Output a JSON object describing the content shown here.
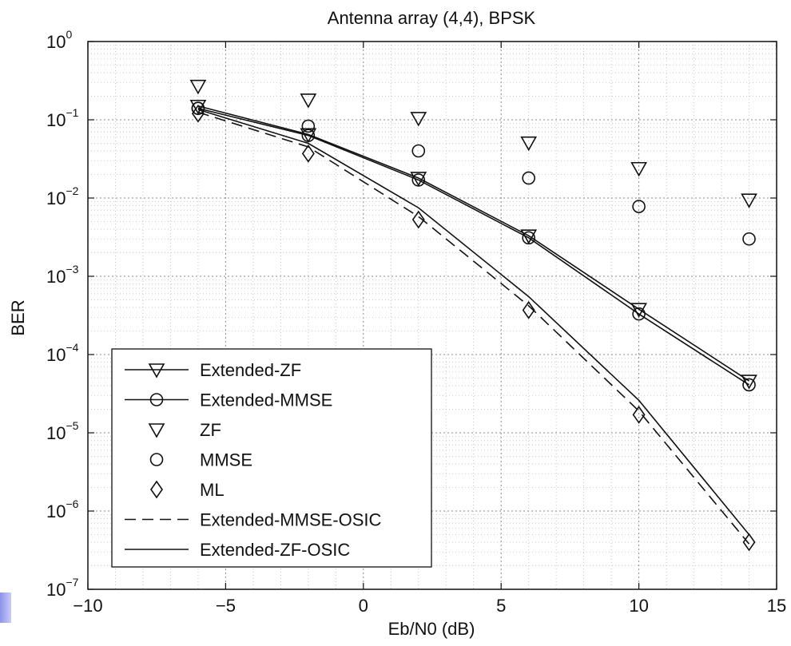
{
  "chart_data": {
    "type": "line",
    "title": "Antenna array (4,4), BPSK",
    "xlabel": "Eb/N0 (dB)",
    "ylabel": "BER",
    "xlim": [
      -10,
      15
    ],
    "ylim_log10": [
      -7,
      0
    ],
    "yscale": "log",
    "grid": true,
    "legend_position": "bottom-left",
    "x_ticks": [
      {
        "value": -10,
        "label": "−10"
      },
      {
        "value": -5,
        "label": "−5"
      },
      {
        "value": 0,
        "label": "0"
      },
      {
        "value": 5,
        "label": "5"
      },
      {
        "value": 10,
        "label": "10"
      },
      {
        "value": 15,
        "label": "15"
      }
    ],
    "y_ticks": [
      {
        "exp": 0,
        "base": "10",
        "sup": "0"
      },
      {
        "exp": -1,
        "base": "10",
        "sup": "−1"
      },
      {
        "exp": -2,
        "base": "10",
        "sup": "−2"
      },
      {
        "exp": -3,
        "base": "10",
        "sup": "−3"
      },
      {
        "exp": -4,
        "base": "10",
        "sup": "−4"
      },
      {
        "exp": -5,
        "base": "10",
        "sup": "−5"
      },
      {
        "exp": -6,
        "base": "10",
        "sup": "−6"
      },
      {
        "exp": -7,
        "base": "10",
        "sup": "−7"
      }
    ],
    "series": [
      {
        "name": "Extended-ZF",
        "line": "solid",
        "marker": "triangle-down",
        "x": [
          -6,
          -2,
          2,
          6,
          10,
          14
        ],
        "y": [
          0.15,
          0.065,
          0.018,
          0.0033,
          0.00038,
          4.6e-05
        ]
      },
      {
        "name": "Extended-MMSE",
        "line": "solid",
        "marker": "circle",
        "x": [
          -6,
          -2,
          2,
          6,
          10,
          14
        ],
        "y": [
          0.14,
          0.063,
          0.017,
          0.0031,
          0.00033,
          4.1e-05
        ]
      },
      {
        "name": "ZF",
        "line": "none",
        "marker": "triangle-down",
        "x": [
          -6,
          -2,
          2,
          6,
          10,
          14
        ],
        "y": [
          0.27,
          0.18,
          0.105,
          0.051,
          0.024,
          0.0095
        ]
      },
      {
        "name": "MMSE",
        "line": "none",
        "marker": "circle",
        "x": [
          -6,
          -2,
          2,
          6,
          10,
          14
        ],
        "y": [
          0.14,
          0.083,
          0.04,
          0.018,
          0.0078,
          0.003
        ]
      },
      {
        "name": "ML",
        "line": "none",
        "marker": "diamond",
        "x": [
          -6,
          -2,
          2,
          6,
          10,
          14
        ],
        "y": [
          0.12,
          0.037,
          0.0053,
          0.00037,
          1.7e-05,
          4e-07
        ]
      },
      {
        "name": "Extended-MMSE-OSIC",
        "line": "dashed",
        "marker": "none",
        "x": [
          -6,
          -2,
          2,
          6,
          10,
          14
        ],
        "y": [
          0.125,
          0.045,
          0.0058,
          0.00042,
          1.9e-05,
          3.8e-07
        ]
      },
      {
        "name": "Extended-ZF-OSIC",
        "line": "solid",
        "marker": "none",
        "x": [
          -6,
          -2,
          2,
          6,
          10,
          14
        ],
        "y": [
          0.135,
          0.05,
          0.0075,
          0.00055,
          2.6e-05,
          5e-07
        ]
      }
    ]
  }
}
